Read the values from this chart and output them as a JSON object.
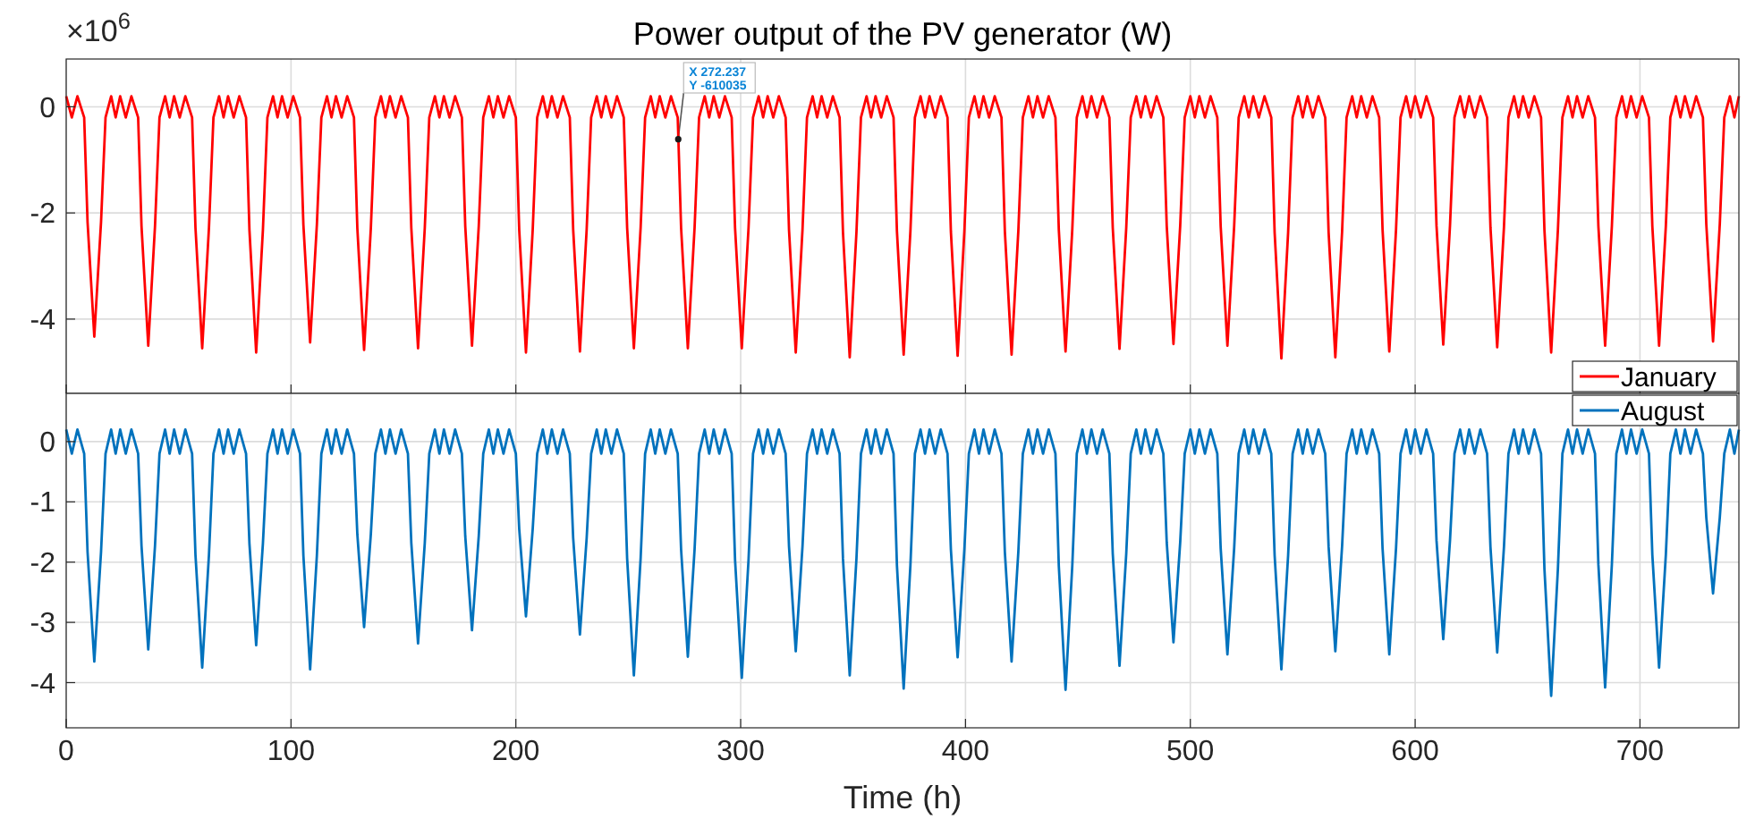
{
  "chart_data": [
    {
      "type": "line",
      "title": "Power output of the PV generator (W)",
      "xlim": [
        0,
        744
      ],
      "xticks": [
        0,
        100,
        200,
        300,
        400,
        500,
        600,
        700
      ],
      "ylim": [
        -5.4,
        0.9
      ],
      "yticks": [
        -4,
        -2,
        0
      ],
      "tick_labels": "y",
      "grid": true,
      "legend": "bottom right",
      "annotations": [
        "×10$^{6}$",
        {
          "text": "X 272.237\nY -610035",
          "x": 272.237,
          "y": -0.610035
        }
      ],
      "x": [
        0,
        2.5,
        5,
        8,
        9.5,
        12.5,
        15.5,
        17.5,
        20,
        22,
        24,
        26.5,
        29,
        32,
        33.5,
        36.5,
        39.5,
        41.5,
        44,
        46,
        48,
        50.5,
        53,
        56,
        57.5,
        60.5,
        63.5,
        65.5,
        68,
        70,
        72,
        74.5,
        77,
        80,
        81.5,
        84.5,
        87.5,
        89.5,
        92,
        94,
        96,
        98.5,
        101,
        104,
        105.5,
        108.5,
        111.5,
        113.5,
        116,
        118,
        120,
        122.5,
        125,
        128,
        129.5,
        132.5,
        135.5,
        137.5,
        140,
        142,
        144,
        146.5,
        149,
        152,
        153.5,
        156.5,
        159.5,
        161.5,
        164,
        166,
        168,
        170.5,
        173,
        176,
        177.5,
        180.5,
        183.5,
        185.5,
        188,
        190,
        192,
        194.5,
        197,
        200,
        201.5,
        204.5,
        207.5,
        209.5,
        212,
        214,
        216,
        218.5,
        221,
        224,
        225.5,
        228.5,
        231.5,
        233.5,
        236,
        238,
        240,
        242.5,
        245,
        248,
        249.5,
        252.5,
        255.5,
        257.5,
        260,
        262,
        264,
        266.5,
        269,
        272,
        273.5,
        276.5,
        279.5,
        281.5,
        284,
        286,
        288,
        290.5,
        293,
        296,
        297.5,
        300.5,
        303.5,
        305.5,
        308,
        310,
        312,
        314.5,
        317,
        320,
        321.5,
        324.5,
        327.5,
        329.5,
        332,
        334,
        336,
        338.5,
        341,
        344,
        345.5,
        348.5,
        351.5,
        353.5,
        356,
        358,
        360,
        362.5,
        365,
        368,
        369.5,
        372.5,
        375.5,
        377.5,
        380,
        382,
        384,
        386.5,
        389,
        392,
        393.5,
        396.5,
        399.5,
        401.5,
        404,
        406,
        408,
        410.5,
        413,
        416,
        417.5,
        420.5,
        423.5,
        425.5,
        428,
        430,
        432,
        434.5,
        437,
        440,
        441.5,
        444.5,
        447.5,
        449.5,
        452,
        454,
        456,
        458.5,
        461,
        464,
        465.5,
        468.5,
        471.5,
        473.5,
        476,
        478,
        480,
        482.5,
        485,
        488,
        489.5,
        492.5,
        495.5,
        497.5,
        500,
        502,
        504,
        506.5,
        509,
        512,
        513.5,
        516.5,
        519.5,
        521.5,
        524,
        526,
        528,
        530.5,
        533,
        536,
        537.5,
        540.5,
        543.5,
        545.5,
        548,
        550,
        552,
        554.5,
        557,
        560,
        561.5,
        564.5,
        567.5,
        569.5,
        572,
        574,
        576,
        578.5,
        581,
        584,
        585.5,
        588.5,
        591.5,
        593.5,
        596,
        598,
        600,
        602.5,
        605,
        608,
        609.5,
        612.5,
        615.5,
        617.5,
        620,
        622,
        624,
        626.5,
        629,
        632,
        633.5,
        636.5,
        639.5,
        641.5,
        644,
        646,
        648,
        650.5,
        653,
        656,
        657.5,
        660.5,
        663.5,
        665.5,
        668,
        670,
        672,
        674.5,
        677,
        680,
        681.5,
        684.5,
        687.5,
        689.5,
        692,
        694,
        696,
        698.5,
        701,
        704,
        705.5,
        708.5,
        711.5,
        713.5,
        716,
        718,
        720,
        722.5,
        725,
        728,
        729.5,
        732.5,
        735.5,
        737.5,
        740,
        742,
        744
      ],
      "series": [
        {
          "name": "January",
          "color": "#ff0000",
          "values": [
            0.2,
            -0.2,
            0.2,
            -0.2,
            -2.17,
            -4.33,
            -2.17,
            -0.2,
            0.2,
            -0.2,
            0.2,
            -0.2,
            0.2,
            -0.2,
            -2.25,
            -4.5,
            -2.25,
            -0.2,
            0.2,
            -0.2,
            0.2,
            -0.2,
            0.2,
            -0.2,
            -2.28,
            -4.55,
            -2.28,
            -0.2,
            0.2,
            -0.2,
            0.2,
            -0.2,
            0.2,
            -0.2,
            -2.32,
            -4.63,
            -2.32,
            -0.2,
            0.2,
            -0.2,
            0.2,
            -0.2,
            0.2,
            -0.2,
            -2.22,
            -4.44,
            -2.22,
            -0.2,
            0.2,
            -0.2,
            0.2,
            -0.2,
            0.2,
            -0.2,
            -2.29,
            -4.58,
            -2.29,
            -0.2,
            0.2,
            -0.2,
            0.2,
            -0.2,
            0.2,
            -0.2,
            -2.28,
            -4.55,
            -2.28,
            -0.2,
            0.2,
            -0.2,
            0.2,
            -0.2,
            0.2,
            -0.2,
            -2.25,
            -4.5,
            -2.25,
            -0.2,
            0.2,
            -0.2,
            0.2,
            -0.2,
            0.2,
            -0.2,
            -2.32,
            -4.63,
            -2.32,
            -0.2,
            0.2,
            -0.2,
            0.2,
            -0.2,
            0.2,
            -0.2,
            -2.31,
            -4.61,
            -2.31,
            -0.2,
            0.2,
            -0.2,
            0.2,
            -0.2,
            0.2,
            -0.2,
            -2.28,
            -4.55,
            -2.28,
            -0.2,
            0.2,
            -0.2,
            0.2,
            -0.2,
            0.2,
            -0.2,
            -2.28,
            -4.55,
            -2.28,
            -0.2,
            0.2,
            -0.2,
            0.2,
            -0.2,
            0.2,
            -0.2,
            -2.28,
            -4.55,
            -2.28,
            -0.2,
            0.2,
            -0.2,
            0.2,
            -0.2,
            0.2,
            -0.2,
            -2.32,
            -4.63,
            -2.32,
            -0.2,
            0.2,
            -0.2,
            0.2,
            -0.2,
            0.2,
            -0.2,
            -2.36,
            -4.72,
            -2.36,
            -0.2,
            0.2,
            -0.2,
            0.2,
            -0.2,
            0.2,
            -0.2,
            -2.34,
            -4.67,
            -2.34,
            -0.2,
            0.2,
            -0.2,
            0.2,
            -0.2,
            0.2,
            -0.2,
            -2.35,
            -4.69,
            -2.35,
            -0.2,
            0.2,
            -0.2,
            0.2,
            -0.2,
            0.2,
            -0.2,
            -2.34,
            -4.67,
            -2.34,
            -0.2,
            0.2,
            -0.2,
            0.2,
            -0.2,
            0.2,
            -0.2,
            -2.31,
            -4.61,
            -2.31,
            -0.2,
            0.2,
            -0.2,
            0.2,
            -0.2,
            0.2,
            -0.2,
            -2.28,
            -4.56,
            -2.28,
            -0.2,
            0.2,
            -0.2,
            0.2,
            -0.2,
            0.2,
            -0.2,
            -2.24,
            -4.47,
            -2.24,
            -0.2,
            0.2,
            -0.2,
            0.2,
            -0.2,
            0.2,
            -0.2,
            -2.25,
            -4.5,
            -2.25,
            -0.2,
            0.2,
            -0.2,
            0.2,
            -0.2,
            0.2,
            -0.2,
            -2.37,
            -4.74,
            -2.37,
            -0.2,
            0.2,
            -0.2,
            0.2,
            -0.2,
            0.2,
            -0.2,
            -2.36,
            -4.72,
            -2.36,
            -0.2,
            0.2,
            -0.2,
            0.2,
            -0.2,
            0.2,
            -0.2,
            -2.31,
            -4.61,
            -2.31,
            -0.2,
            0.2,
            -0.2,
            0.2,
            -0.2,
            0.2,
            -0.2,
            -2.24,
            -4.48,
            -2.24,
            -0.2,
            0.2,
            -0.2,
            0.2,
            -0.2,
            0.2,
            -0.2,
            -2.27,
            -4.53,
            -2.27,
            -0.2,
            0.2,
            -0.2,
            0.2,
            -0.2,
            0.2,
            -0.2,
            -2.32,
            -4.63,
            -2.32,
            -0.2,
            0.2,
            -0.2,
            0.2,
            -0.2,
            0.2,
            -0.2,
            -2.25,
            -4.5,
            -2.25,
            -0.2,
            0.2,
            -0.2,
            0.2,
            -0.2,
            0.2,
            -0.2,
            -2.25,
            -4.5,
            -2.25,
            -0.2,
            0.2,
            -0.2,
            0.2,
            -0.2,
            0.2,
            -0.2,
            -2.21,
            -4.42,
            -2.21,
            -0.2,
            0.2,
            -0.2,
            0.2
          ]
        }
      ]
    },
    {
      "type": "line",
      "xlabel": "Time (h)",
      "xlim": [
        0,
        744
      ],
      "xticks": [
        0,
        100,
        200,
        300,
        400,
        500,
        600,
        700
      ],
      "ylim": [
        -4.75,
        0.8
      ],
      "yticks": [
        -4,
        -3,
        -2,
        -1,
        0
      ],
      "grid": true,
      "legend": "top right",
      "x": [
        0,
        2.5,
        5,
        8,
        9.5,
        12.5,
        15.5,
        17.5,
        20,
        22,
        24,
        26.5,
        29,
        32,
        33.5,
        36.5,
        39.5,
        41.5,
        44,
        46,
        48,
        50.5,
        53,
        56,
        57.5,
        60.5,
        63.5,
        65.5,
        68,
        70,
        72,
        74.5,
        77,
        80,
        81.5,
        84.5,
        87.5,
        89.5,
        92,
        94,
        96,
        98.5,
        101,
        104,
        105.5,
        108.5,
        111.5,
        113.5,
        116,
        118,
        120,
        122.5,
        125,
        128,
        129.5,
        132.5,
        135.5,
        137.5,
        140,
        142,
        144,
        146.5,
        149,
        152,
        153.5,
        156.5,
        159.5,
        161.5,
        164,
        166,
        168,
        170.5,
        173,
        176,
        177.5,
        180.5,
        183.5,
        185.5,
        188,
        190,
        192,
        194.5,
        197,
        200,
        201.5,
        204.5,
        207.5,
        209.5,
        212,
        214,
        216,
        218.5,
        221,
        224,
        225.5,
        228.5,
        231.5,
        233.5,
        236,
        238,
        240,
        242.5,
        245,
        248,
        249.5,
        252.5,
        255.5,
        257.5,
        260,
        262,
        264,
        266.5,
        269,
        272,
        273.5,
        276.5,
        279.5,
        281.5,
        284,
        286,
        288,
        290.5,
        293,
        296,
        297.5,
        300.5,
        303.5,
        305.5,
        308,
        310,
        312,
        314.5,
        317,
        320,
        321.5,
        324.5,
        327.5,
        329.5,
        332,
        334,
        336,
        338.5,
        341,
        344,
        345.5,
        348.5,
        351.5,
        353.5,
        356,
        358,
        360,
        362.5,
        365,
        368,
        369.5,
        372.5,
        375.5,
        377.5,
        380,
        382,
        384,
        386.5,
        389,
        392,
        393.5,
        396.5,
        399.5,
        401.5,
        404,
        406,
        408,
        410.5,
        413,
        416,
        417.5,
        420.5,
        423.5,
        425.5,
        428,
        430,
        432,
        434.5,
        437,
        440,
        441.5,
        444.5,
        447.5,
        449.5,
        452,
        454,
        456,
        458.5,
        461,
        464,
        465.5,
        468.5,
        471.5,
        473.5,
        476,
        478,
        480,
        482.5,
        485,
        488,
        489.5,
        492.5,
        495.5,
        497.5,
        500,
        502,
        504,
        506.5,
        509,
        512,
        513.5,
        516.5,
        519.5,
        521.5,
        524,
        526,
        528,
        530.5,
        533,
        536,
        537.5,
        540.5,
        543.5,
        545.5,
        548,
        550,
        552,
        554.5,
        557,
        560,
        561.5,
        564.5,
        567.5,
        569.5,
        572,
        574,
        576,
        578.5,
        581,
        584,
        585.5,
        588.5,
        591.5,
        593.5,
        596,
        598,
        600,
        602.5,
        605,
        608,
        609.5,
        612.5,
        615.5,
        617.5,
        620,
        622,
        624,
        626.5,
        629,
        632,
        633.5,
        636.5,
        639.5,
        641.5,
        644,
        646,
        648,
        650.5,
        653,
        656,
        657.5,
        660.5,
        663.5,
        665.5,
        668,
        670,
        672,
        674.5,
        677,
        680,
        681.5,
        684.5,
        687.5,
        689.5,
        692,
        694,
        696,
        698.5,
        701,
        704,
        705.5,
        708.5,
        711.5,
        713.5,
        716,
        718,
        720,
        722.5,
        725,
        728,
        729.5,
        732.5,
        735.5,
        737.5,
        740,
        742,
        744
      ],
      "series": [
        {
          "name": "August",
          "color": "#0072bd",
          "values": [
            0.2,
            -0.2,
            0.2,
            -0.2,
            -1.83,
            -3.65,
            -1.83,
            -0.2,
            0.2,
            -0.2,
            0.2,
            -0.2,
            0.2,
            -0.2,
            -1.73,
            -3.45,
            -1.73,
            -0.2,
            0.2,
            -0.2,
            0.2,
            -0.2,
            0.2,
            -0.2,
            -1.88,
            -3.75,
            -1.88,
            -0.2,
            0.2,
            -0.2,
            0.2,
            -0.2,
            0.2,
            -0.2,
            -1.69,
            -3.38,
            -1.69,
            -0.2,
            0.2,
            -0.2,
            0.2,
            -0.2,
            0.2,
            -0.2,
            -1.89,
            -3.78,
            -1.89,
            -0.2,
            0.2,
            -0.2,
            0.2,
            -0.2,
            0.2,
            -0.2,
            -1.54,
            -3.08,
            -1.54,
            -0.2,
            0.2,
            -0.2,
            0.2,
            -0.2,
            0.2,
            -0.2,
            -1.68,
            -3.35,
            -1.68,
            -0.2,
            0.2,
            -0.2,
            0.2,
            -0.2,
            0.2,
            -0.2,
            -1.57,
            -3.13,
            -1.57,
            -0.2,
            0.2,
            -0.2,
            0.2,
            -0.2,
            0.2,
            -0.2,
            -1.45,
            -2.9,
            -1.45,
            -0.2,
            0.2,
            -0.2,
            0.2,
            -0.2,
            0.2,
            -0.2,
            -1.6,
            -3.2,
            -1.6,
            -0.2,
            0.2,
            -0.2,
            0.2,
            -0.2,
            0.2,
            -0.2,
            -1.94,
            -3.88,
            -1.94,
            -0.2,
            0.2,
            -0.2,
            0.2,
            -0.2,
            0.2,
            -0.2,
            -1.79,
            -3.57,
            -1.79,
            -0.2,
            0.2,
            -0.2,
            0.2,
            -0.2,
            0.2,
            -0.2,
            -1.96,
            -3.92,
            -1.96,
            -0.2,
            0.2,
            -0.2,
            0.2,
            -0.2,
            0.2,
            -0.2,
            -1.74,
            -3.48,
            -1.74,
            -0.2,
            0.2,
            -0.2,
            0.2,
            -0.2,
            0.2,
            -0.2,
            -1.94,
            -3.88,
            -1.94,
            -0.2,
            0.2,
            -0.2,
            0.2,
            -0.2,
            0.2,
            -0.2,
            -2.05,
            -4.1,
            -2.05,
            -0.2,
            0.2,
            -0.2,
            0.2,
            -0.2,
            0.2,
            -0.2,
            -1.79,
            -3.58,
            -1.79,
            -0.2,
            0.2,
            -0.2,
            0.2,
            -0.2,
            0.2,
            -0.2,
            -1.83,
            -3.65,
            -1.83,
            -0.2,
            0.2,
            -0.2,
            0.2,
            -0.2,
            0.2,
            -0.2,
            -2.06,
            -4.12,
            -2.06,
            -0.2,
            0.2,
            -0.2,
            0.2,
            -0.2,
            0.2,
            -0.2,
            -1.86,
            -3.72,
            -1.86,
            -0.2,
            0.2,
            -0.2,
            0.2,
            -0.2,
            0.2,
            -0.2,
            -1.67,
            -3.33,
            -1.67,
            -0.2,
            0.2,
            -0.2,
            0.2,
            -0.2,
            0.2,
            -0.2,
            -1.77,
            -3.53,
            -1.77,
            -0.2,
            0.2,
            -0.2,
            0.2,
            -0.2,
            0.2,
            -0.2,
            -1.89,
            -3.78,
            -1.89,
            -0.2,
            0.2,
            -0.2,
            0.2,
            -0.2,
            0.2,
            -0.2,
            -1.74,
            -3.48,
            -1.74,
            -0.2,
            0.2,
            -0.2,
            0.2,
            -0.2,
            0.2,
            -0.2,
            -1.77,
            -3.53,
            -1.77,
            -0.2,
            0.2,
            -0.2,
            0.2,
            -0.2,
            0.2,
            -0.2,
            -1.64,
            -3.28,
            -1.64,
            -0.2,
            0.2,
            -0.2,
            0.2,
            -0.2,
            0.2,
            -0.2,
            -1.75,
            -3.5,
            -1.75,
            -0.2,
            0.2,
            -0.2,
            0.2,
            -0.2,
            0.2,
            -0.2,
            -2.11,
            -4.22,
            -2.11,
            -0.2,
            0.2,
            -0.2,
            0.2,
            -0.2,
            0.2,
            -0.2,
            -2.04,
            -4.08,
            -2.04,
            -0.2,
            0.2,
            -0.2,
            0.2,
            -0.2,
            0.2,
            -0.2,
            -1.88,
            -3.75,
            -1.88,
            -0.2,
            0.2,
            -0.2,
            0.2,
            -0.2,
            0.2,
            -0.2,
            -1.26,
            -2.52,
            -1.26,
            -0.2,
            0.2,
            -0.2,
            0.2
          ]
        }
      ]
    }
  ]
}
